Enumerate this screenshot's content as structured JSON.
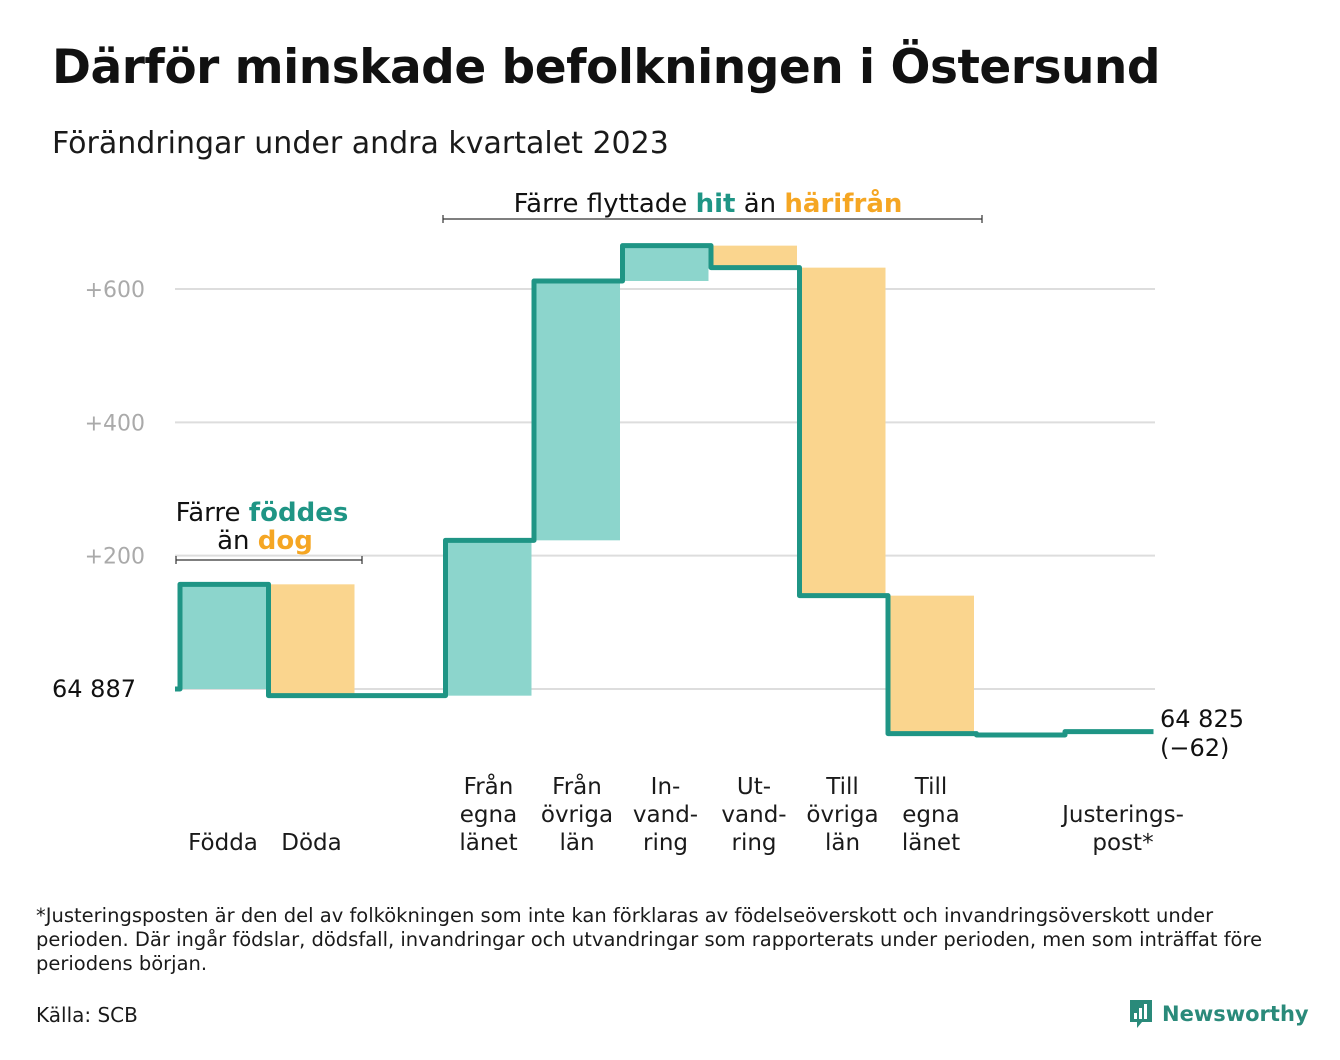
{
  "header": {
    "title": "Därför minskade befolkningen i Östersund",
    "subtitle": "Förändringar under andra kvartalet 2023"
  },
  "chart_data": {
    "type": "waterfall",
    "start_value": 64887,
    "start_label": "64  887",
    "end_value": 64825,
    "end_label": "64 825",
    "change_label": "(−62)",
    "y_ticks": [
      {
        "value": 200,
        "label": "+200"
      },
      {
        "value": 400,
        "label": "+400"
      },
      {
        "value": 600,
        "label": "+600"
      }
    ],
    "ylim": [
      -100,
      680
    ],
    "steps": [
      {
        "label_lines": [
          "Födda"
        ],
        "change": 157,
        "kind": "in"
      },
      {
        "label_lines": [
          "Döda"
        ],
        "change": -167,
        "kind": "out"
      },
      {
        "label_lines": [],
        "change": 0,
        "kind": "gap"
      },
      {
        "label_lines": [
          "Från",
          "egna",
          "länet"
        ],
        "change": 233,
        "kind": "in"
      },
      {
        "label_lines": [
          "Från",
          "övriga",
          "län"
        ],
        "change": 389,
        "kind": "in"
      },
      {
        "label_lines": [
          "In-",
          "vand-",
          "ring"
        ],
        "change": 53,
        "kind": "in"
      },
      {
        "label_lines": [
          "Ut-",
          "vand-",
          "ring"
        ],
        "change": -33,
        "kind": "out"
      },
      {
        "label_lines": [
          "Till",
          "övriga",
          "län"
        ],
        "change": -492,
        "kind": "out"
      },
      {
        "label_lines": [
          "Till",
          "egna",
          "länet"
        ],
        "change": -207,
        "kind": "out"
      },
      {
        "label_lines": [],
        "change": -2,
        "kind": "gap"
      },
      {
        "label_lines": [
          "Justerings-",
          "post*"
        ],
        "change": 5,
        "kind": "adjustment"
      }
    ],
    "annotations": [
      {
        "parts": [
          {
            "text": "Färre ",
            "role": "plain"
          },
          {
            "text": "föddes",
            "role": "in"
          }
        ],
        "line2": [
          {
            "text": "än ",
            "role": "plain"
          },
          {
            "text": "dog",
            "role": "out"
          }
        ]
      },
      {
        "parts": [
          {
            "text": "Färre flyttade ",
            "role": "plain"
          },
          {
            "text": "hit",
            "role": "in"
          },
          {
            "text": "  än ",
            "role": "plain"
          },
          {
            "text": "härifrån",
            "role": "out"
          }
        ]
      }
    ],
    "colors": {
      "in_fill": "#8cd5cc",
      "out_fill": "#fad58e",
      "line": "#1f9585",
      "in_text": "#1f9585",
      "out_text": "#f5a623",
      "grid": "#dddddd",
      "tick_text": "#aaaaaa"
    }
  },
  "footer": {
    "footnote": "*Justeringsposten är den del av folkökningen som inte kan förklaras av födelseöverskott och invandringsöverskott under perioden. Där ingår födslar, dödsfall, invandringar och utvandringar som rapporterats under perioden, men som inträffat före periodens början.",
    "source": "Källa: SCB",
    "brand": "Newsworthy",
    "brand_icon": "newsworthy-logo-icon"
  }
}
